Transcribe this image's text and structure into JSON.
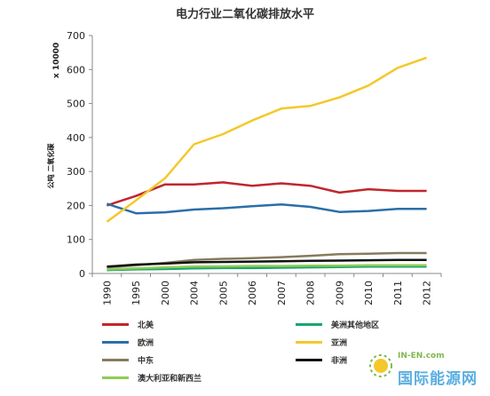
{
  "chart_data": {
    "type": "line",
    "title": "电力行业二氧化碳排放水平",
    "ylabel_multiplier": "x 10000",
    "ylabel": "公吨 二氧化碳",
    "ylim": [
      0,
      700
    ],
    "yticks": [
      0,
      100,
      200,
      300,
      400,
      500,
      600,
      700
    ],
    "categories": [
      "1990",
      "1995",
      "2000",
      "2004",
      "2005",
      "2006",
      "2007",
      "2008",
      "2009",
      "2010",
      "2011",
      "2012"
    ],
    "grid": false,
    "legend_position": "bottom",
    "series": [
      {
        "name": "北美",
        "color": "#c0262d",
        "values": [
          200,
          228,
          262,
          262,
          268,
          258,
          265,
          258,
          238,
          248,
          243,
          243
        ]
      },
      {
        "name": "美洲其他地区",
        "color": "#1aa56f",
        "values": [
          10,
          12,
          13,
          15,
          16,
          16,
          17,
          18,
          19,
          20,
          20,
          20
        ]
      },
      {
        "name": "欧洲",
        "color": "#2b6ea8",
        "values": [
          205,
          177,
          180,
          188,
          192,
          198,
          203,
          196,
          181,
          184,
          190,
          190
        ]
      },
      {
        "name": "亚洲",
        "color": "#f4c82a",
        "values": [
          152,
          215,
          280,
          380,
          410,
          450,
          485,
          493,
          518,
          553,
          605,
          635
        ]
      },
      {
        "name": "中东",
        "color": "#857b5d",
        "values": [
          18,
          24,
          31,
          40,
          43,
          45,
          48,
          52,
          57,
          58,
          60,
          60
        ]
      },
      {
        "name": "非洲",
        "color": "#111111",
        "values": [
          20,
          26,
          29,
          33,
          34,
          35,
          36,
          37,
          38,
          39,
          40,
          40
        ]
      },
      {
        "name": "澳大利亚和新西兰",
        "color": "#8fcb55",
        "values": [
          12,
          15,
          18,
          20,
          21,
          22,
          22,
          23,
          23,
          24,
          24,
          24
        ]
      }
    ]
  },
  "watermark": {
    "text_en": "IN-EN.com",
    "text_cn": "国际能源网"
  }
}
